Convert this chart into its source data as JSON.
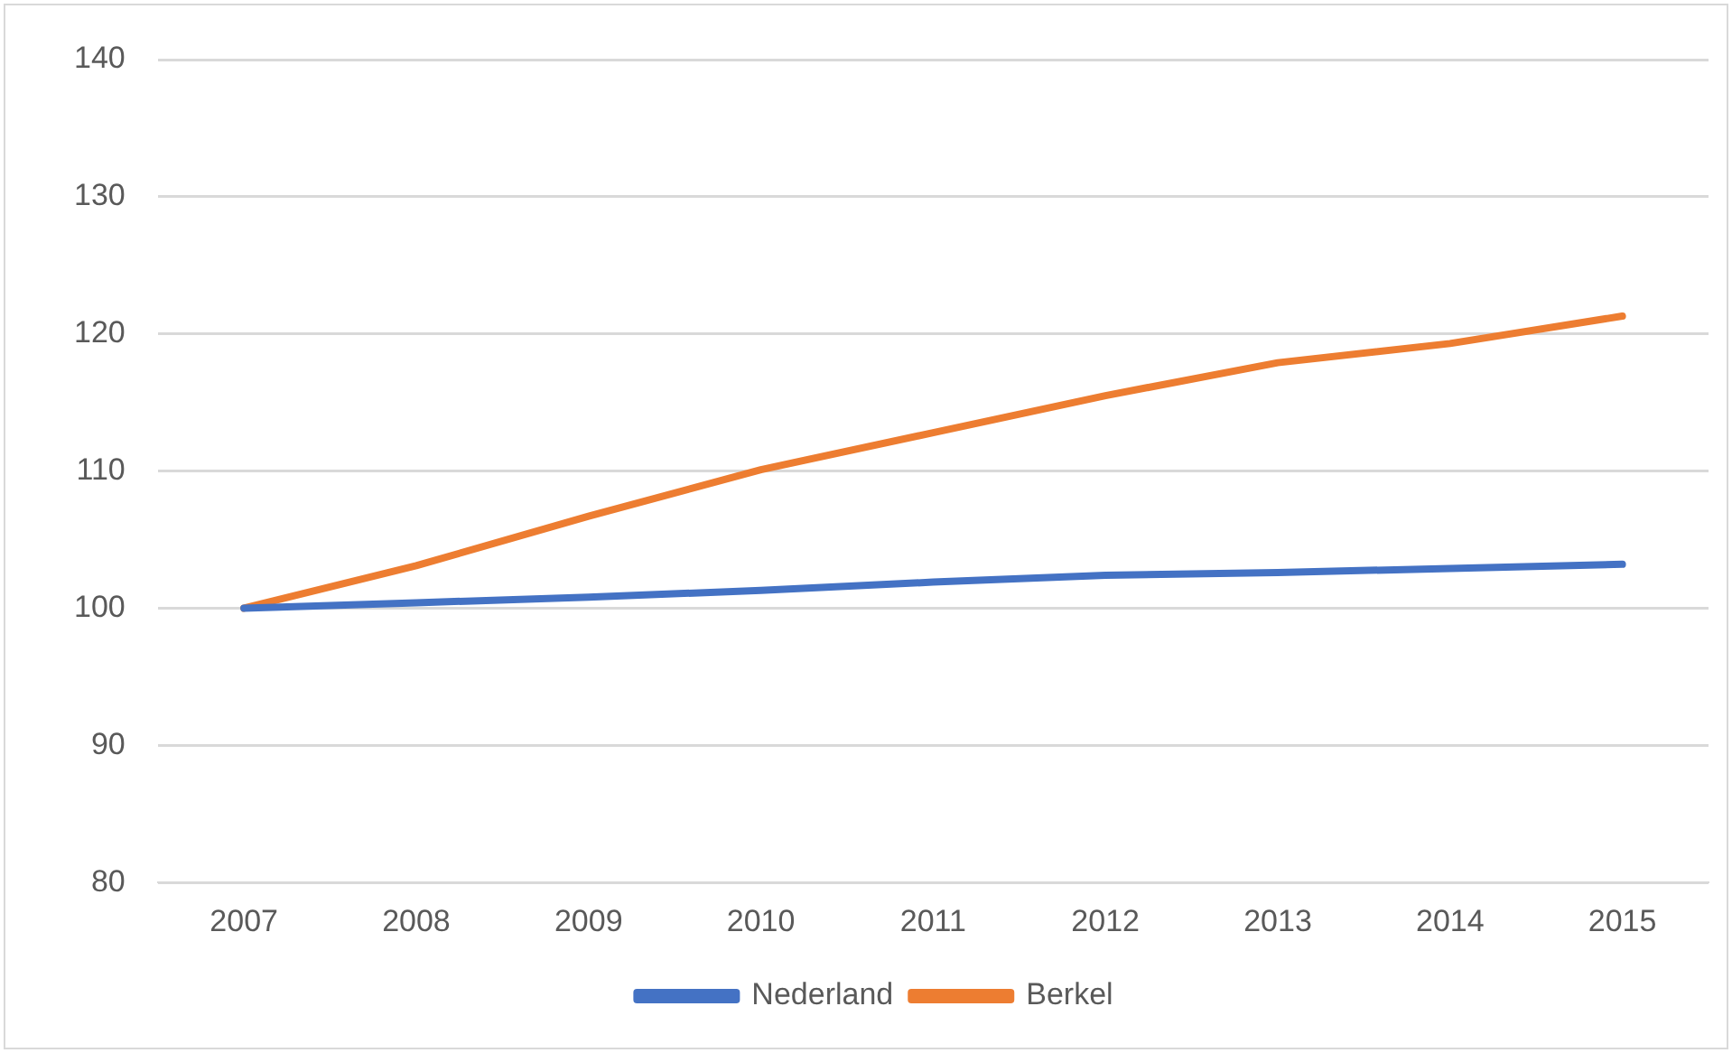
{
  "chart_data": {
    "type": "line",
    "categories": [
      "2007",
      "2008",
      "2009",
      "2010",
      "2011",
      "2012",
      "2013",
      "2014",
      "2015"
    ],
    "series": [
      {
        "name": "Nederland",
        "color": "#4472c4",
        "values": [
          100,
          100.4,
          100.8,
          101.3,
          101.9,
          102.4,
          102.6,
          102.9,
          103.2
        ]
      },
      {
        "name": "Berkel",
        "color": "#ed7d31",
        "values": [
          100,
          103.1,
          106.7,
          110.1,
          112.8,
          115.5,
          117.9,
          119.3,
          121.3
        ]
      }
    ],
    "ylim": [
      80,
      140
    ],
    "yticks": [
      80,
      90,
      100,
      110,
      120,
      130,
      140
    ],
    "grid": "y",
    "legend": "bottom",
    "marker": "none",
    "line_style": "solid"
  }
}
